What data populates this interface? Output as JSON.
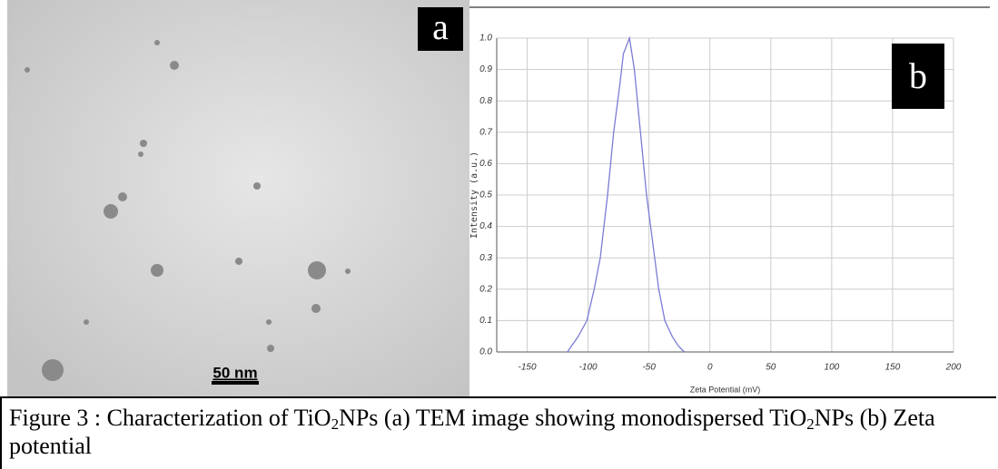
{
  "panel_a": {
    "label": "a",
    "scale_bar": "50 nm"
  },
  "panel_b_label": "b",
  "chart_data": {
    "type": "line",
    "x_label": "Zeta Potential (mV)",
    "y_label": "Intensity (a.u.)",
    "series": [
      {
        "color": "#7b7bd6",
        "x": [
          -117,
          -108,
          -101,
          -95,
          -90,
          -84,
          -79,
          -74,
          -71,
          -66,
          -62,
          -57,
          -52,
          -47,
          -42,
          -37,
          -31,
          -26,
          -21
        ],
        "values": [
          0,
          0.05,
          0.1,
          0.2,
          0.3,
          0.5,
          0.7,
          0.85,
          0.95,
          1.0,
          0.9,
          0.7,
          0.5,
          0.35,
          0.2,
          0.1,
          0.05,
          0.02,
          0
        ]
      }
    ],
    "xlim": [
      -175,
      200
    ],
    "xticks": [
      -150,
      -100,
      -50,
      0,
      50,
      100,
      150,
      200
    ],
    "ylim": [
      0,
      1
    ],
    "yticks": [
      {
        "value": 0,
        "label": "0.0"
      },
      0.1,
      0.2,
      0.3,
      0.4,
      0.5,
      0.6,
      0.7,
      0.8,
      0.9,
      {
        "value": 1,
        "label": "1.0"
      }
    ],
    "grid": true
  },
  "caption": [
    "Figure 3 : Characterization of TiO",
    "2",
    "NPs (a) TEM image showing monodispersed TiO",
    "2",
    "NPs (b) Zeta potential"
  ]
}
